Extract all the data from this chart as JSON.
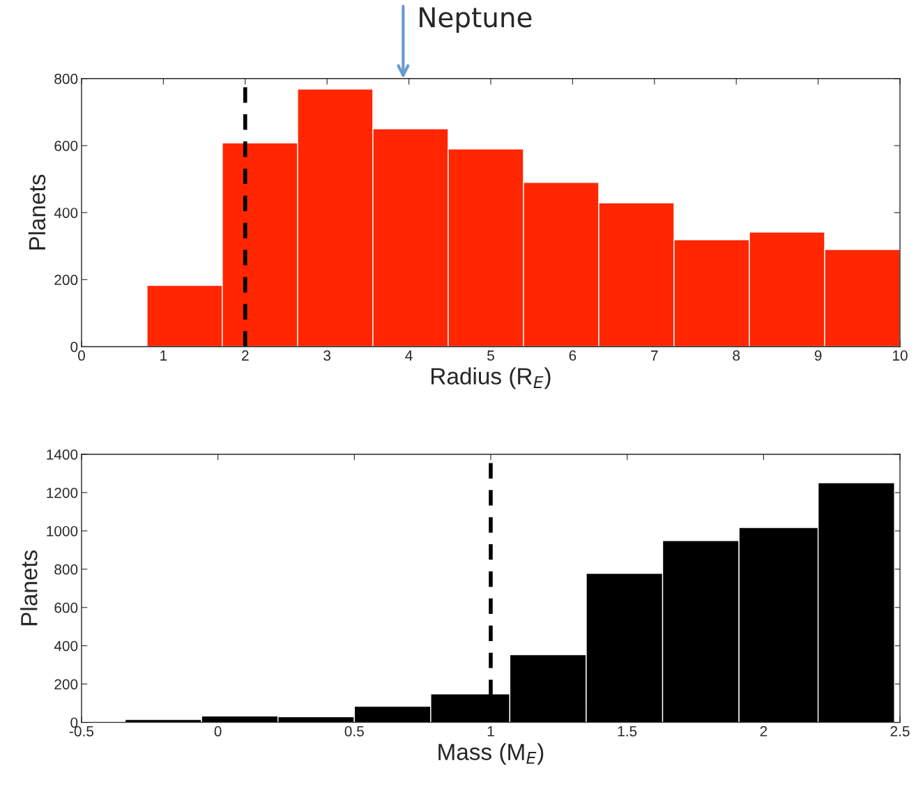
{
  "chart_data": [
    {
      "type": "histogram",
      "xlabel": "Radius (R$_{E}$)",
      "ylabel": "Planets",
      "color": "#ff2600",
      "bins": [
        0.8,
        1.72,
        2.64,
        3.56,
        4.48,
        5.4,
        6.32,
        7.24,
        8.16,
        9.08,
        10
      ],
      "values": [
        183,
        608,
        769,
        650,
        590,
        490,
        429,
        319,
        342,
        290
      ],
      "xlim": [
        0,
        10
      ],
      "ylim": [
        0,
        800
      ],
      "xticks": [
        0,
        1,
        2,
        3,
        4,
        5,
        6,
        7,
        8,
        9,
        10
      ],
      "yticks": [
        0,
        200,
        400,
        600,
        800
      ],
      "ref_lines": [
        {
          "axis": "x",
          "value": 2,
          "color": "#000000",
          "line_style": "dashed"
        }
      ],
      "annotations": [
        "Neptune"
      ]
    },
    {
      "type": "histogram",
      "xlabel": "Mass (M$_{E}$)",
      "ylabel": "Planets",
      "color": "#000000",
      "bins": [
        -0.34,
        -0.06,
        0.22,
        0.5,
        0.78,
        1.07,
        1.35,
        1.63,
        1.91,
        2.2,
        2.48
      ],
      "values": [
        15,
        33,
        29,
        84,
        149,
        353,
        778,
        949,
        1018,
        1251
      ],
      "xlim": [
        -0.5,
        2.5
      ],
      "ylim": [
        0,
        1400
      ],
      "xticks": [
        -0.5,
        0,
        0.5,
        1,
        1.5,
        2,
        2.5
      ],
      "yticks": [
        0,
        200,
        400,
        600,
        800,
        1000,
        1200,
        1400
      ],
      "ref_lines": [
        {
          "axis": "x",
          "value": 1,
          "color": "#000000",
          "line_style": "dashed"
        }
      ]
    }
  ]
}
